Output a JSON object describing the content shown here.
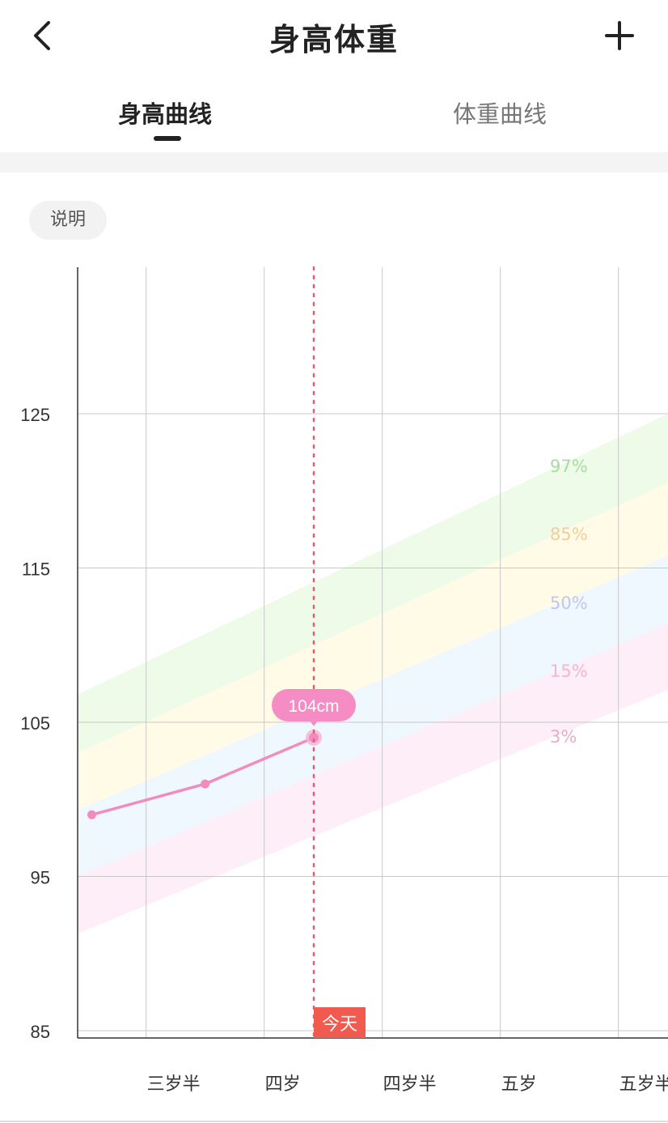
{
  "header": {
    "title": "身高体重",
    "back_icon": "chevron-left-icon",
    "add_icon": "plus-icon"
  },
  "tabs": [
    {
      "label": "身高曲线",
      "active": true
    },
    {
      "label": "体重曲线",
      "active": false
    }
  ],
  "explain_button": "说明",
  "chart_data": {
    "type": "line",
    "xlabel": "",
    "ylabel": "",
    "ylim": [
      85,
      134.5
    ],
    "xlim": [
      3.21,
      5.71
    ],
    "yticks": [
      125,
      115,
      105,
      95,
      85
    ],
    "xticks": [
      {
        "value": 3.5,
        "label": "三岁半"
      },
      {
        "value": 4.0,
        "label": "四岁"
      },
      {
        "value": 4.5,
        "label": "四岁半"
      },
      {
        "value": 5.0,
        "label": "五岁"
      },
      {
        "value": 5.5,
        "label": "五岁半"
      }
    ],
    "grid": true,
    "series": [
      {
        "x": [
          3.27,
          3.75,
          4.21
        ],
        "y": [
          99,
          101,
          104
        ],
        "color": "#f28cc0"
      }
    ],
    "highlight": {
      "x": 4.21,
      "y": 104,
      "label": "104cm"
    },
    "today": {
      "x": 4.21,
      "label": "今天",
      "color": "#f05a4f"
    },
    "percentile_bands": {
      "x": [
        3.21,
        5.71
      ],
      "boundaries": [
        {
          "label": "97%",
          "y": [
            106.8,
            125.0
          ],
          "color": "#eefbe9",
          "text_color": "#a8dca0"
        },
        {
          "label": "85%",
          "y": [
            103.0,
            120.5
          ],
          "color": "#fffbe6",
          "text_color": "#f2cf9a"
        },
        {
          "label": "50%",
          "y": [
            99.3,
            115.8
          ],
          "color": "#eff8fe",
          "text_color": "#c4c4ec"
        },
        {
          "label": "15%",
          "y": [
            95.0,
            111.4
          ],
          "color": "#fdeef7",
          "text_color": "#f0b8d2"
        },
        {
          "label": "3%",
          "y": [
            91.3,
            107.1
          ],
          "color": "#fdeef7",
          "text_color": "#e6aec4"
        }
      ]
    }
  }
}
